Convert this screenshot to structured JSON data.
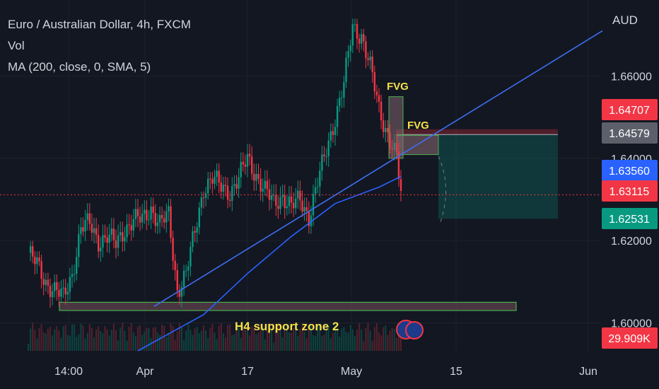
{
  "header": {
    "symbol_title": "Euro / Australian Dollar, 4h, FXCM",
    "indicator_vol": "Vol",
    "indicator_ma": "MA (200, close, 0, SMA, 5)"
  },
  "chart_data": {
    "type": "candlestick",
    "currency_label": "AUD",
    "y_ticks": [
      "1.66000",
      "1.64000",
      "1.62000",
      "1.60000"
    ],
    "y_tick_values": [
      1.66,
      1.64,
      1.62,
      1.6
    ],
    "ylim": [
      1.5932,
      1.6785
    ],
    "x_ticks": [
      "14:00",
      "Apr",
      "17",
      "May",
      "15",
      "Jun"
    ],
    "price_labels": [
      {
        "text": "1.64707",
        "value": 1.64707,
        "color": "#f23645"
      },
      {
        "text": "1.64579",
        "value": 1.64579,
        "color": "#5d606b"
      },
      {
        "text": "1.63560",
        "value": 1.6356,
        "color": "#2962ff"
      },
      {
        "text": "1.63115",
        "value": 1.63115,
        "color": "#f23645"
      },
      {
        "text": "1.62531",
        "value": 1.62531,
        "color": "#089981"
      },
      {
        "text": "29.909K",
        "value": null,
        "color": "#f23645"
      }
    ],
    "current_price": 1.63115,
    "annotations": {
      "fvg_upper": "FVG",
      "fvg_lower": "FVG",
      "support_zone": "H4 support zone 2"
    },
    "support_zone_range": [
      1.603,
      1.605
    ],
    "fvg_upper_range": [
      1.64,
      1.655
    ],
    "fvg_lower_range": [
      1.6409,
      1.6456
    ],
    "short_position": {
      "entry": 1.64579,
      "stop": 1.64707,
      "target": 1.62531
    },
    "colors": {
      "up": "#089981",
      "down": "#f23645",
      "ma": "#2962ff",
      "trendline": "#3d6ef0",
      "fvg_text": "#f5e04a",
      "zone_border": "#4caf50"
    },
    "candle_index_range": [
      0,
      170
    ],
    "candle_anchors": {
      "index": [
        0,
        4,
        8,
        12,
        16,
        20,
        24,
        28,
        32,
        36,
        40,
        44,
        48,
        52,
        56,
        60,
        64,
        68,
        72,
        76,
        80,
        84,
        88,
        92,
        96,
        100,
        104,
        108,
        112,
        116,
        120,
        124,
        128,
        132,
        136,
        140,
        144,
        148,
        152,
        156,
        160,
        164,
        168,
        170
      ],
      "close": [
        1.617,
        1.614,
        1.61,
        1.608,
        1.606,
        1.612,
        1.623,
        1.624,
        1.62,
        1.621,
        1.619,
        1.623,
        1.625,
        1.625,
        1.628,
        1.624,
        1.626,
        1.608,
        1.612,
        1.622,
        1.633,
        1.635,
        1.633,
        1.632,
        1.635,
        1.64,
        1.636,
        1.632,
        1.629,
        1.631,
        1.628,
        1.63,
        1.626,
        1.634,
        1.642,
        1.65,
        1.658,
        1.672,
        1.67,
        1.662,
        1.652,
        1.646,
        1.64,
        1.6311
      ]
    },
    "ma_line": {
      "index": [
        50,
        80,
        100,
        120,
        140,
        160,
        170
      ],
      "value": [
        1.5932,
        1.602,
        1.612,
        1.621,
        1.629,
        1.633,
        1.6356
      ]
    },
    "trendline": {
      "start": [
        42,
        1.604
      ],
      "end": [
        306,
        1.671
      ]
    }
  }
}
